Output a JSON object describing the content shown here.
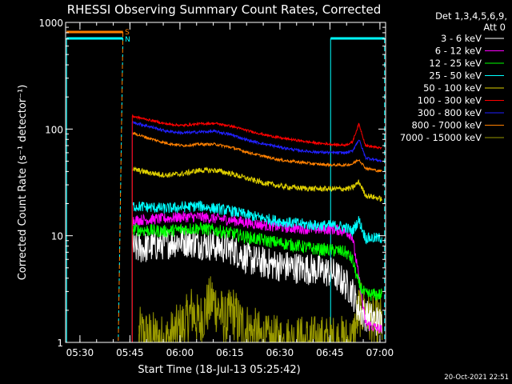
{
  "chart_data": {
    "type": "line",
    "title": "RHESSI Observing Summary Count Rates, Corrected",
    "xlabel": "Start Time (18-Jul-13 05:25:42)",
    "ylabel": "Corrected Count Rate (s⁻¹ detector⁻¹)",
    "yscale": "log",
    "ylim": [
      1,
      1000
    ],
    "xlim_minutes": [
      0,
      96
    ],
    "x_ticks": [
      "05:30",
      "05:45",
      "06:00",
      "06:15",
      "06:30",
      "06:45",
      "07:00"
    ],
    "y_ticks": [
      "1",
      "10",
      "100",
      "1000"
    ],
    "legend_header": [
      "Det 1,3,4,5,6,9,",
      "Att 0"
    ],
    "legend_position": "right",
    "footer_date": "20-Oct-2021 22:51",
    "flags": [
      {
        "label": "S",
        "color": "#ff8000"
      },
      {
        "label": "N",
        "color": "#00ffff"
      }
    ],
    "series": [
      {
        "name": "3 - 6 keV",
        "color": "#ffffff",
        "x": [
          20,
          25,
          30,
          35,
          40,
          45,
          50,
          55,
          60,
          65,
          70,
          75,
          80,
          82,
          84,
          86,
          88,
          90,
          95
        ],
        "y": [
          7.5,
          7.8,
          8.5,
          9.0,
          8.5,
          8.0,
          7.5,
          6.0,
          5.5,
          5.2,
          5.0,
          4.8,
          4.5,
          4.0,
          3.5,
          3.0,
          2.0,
          1.8,
          1.5
        ]
      },
      {
        "name": "6 - 12 keV",
        "color": "#ff00ff",
        "x": [
          20,
          25,
          30,
          35,
          40,
          45,
          50,
          55,
          60,
          65,
          70,
          75,
          80,
          82,
          84,
          86,
          88,
          90,
          95
        ],
        "y": [
          14,
          14.2,
          14.5,
          15,
          15,
          14.5,
          14,
          13.2,
          12.5,
          12,
          11.7,
          11.5,
          11.5,
          11.3,
          11,
          10,
          4,
          1.5,
          1.3
        ]
      },
      {
        "name": "12 - 25 keV",
        "color": "#00ff00",
        "x": [
          20,
          25,
          30,
          35,
          40,
          45,
          50,
          55,
          60,
          65,
          70,
          75,
          80,
          82,
          84,
          86,
          88,
          90,
          95
        ],
        "y": [
          11.5,
          11.2,
          11,
          11.5,
          11.8,
          11.2,
          10.5,
          9.6,
          9,
          8.5,
          8,
          7.5,
          7.3,
          7.2,
          7,
          6,
          3.5,
          2.8,
          2.8
        ]
      },
      {
        "name": "25 - 50 keV",
        "color": "#00ffff",
        "x": [
          20,
          25,
          30,
          35,
          40,
          45,
          50,
          55,
          60,
          65,
          70,
          75,
          80,
          82,
          84,
          86,
          88,
          90,
          95
        ],
        "y": [
          19,
          18.5,
          18,
          18.5,
          19,
          18,
          17,
          15.5,
          14.5,
          13.5,
          13,
          12.5,
          12.5,
          12.3,
          12,
          11,
          14,
          9.5,
          9.5
        ]
      },
      {
        "name": "50 - 100 keV",
        "color": "#e0d000",
        "x": [
          20,
          25,
          30,
          35,
          40,
          45,
          50,
          55,
          60,
          65,
          70,
          75,
          80,
          82,
          84,
          86,
          88,
          90,
          95
        ],
        "y": [
          42,
          39,
          37,
          38,
          41,
          41,
          38,
          34,
          31,
          29,
          28,
          27.5,
          27.5,
          27.5,
          27.5,
          28,
          32,
          24,
          22
        ]
      },
      {
        "name": "100 - 300 keV",
        "color": "#ff0000",
        "x": [
          20,
          25,
          30,
          35,
          40,
          45,
          50,
          55,
          60,
          65,
          70,
          75,
          80,
          82,
          84,
          86,
          88,
          90,
          95
        ],
        "y": [
          132,
          122,
          112,
          108,
          112,
          113,
          106,
          96,
          88,
          82,
          78,
          74,
          72,
          71,
          71,
          75,
          112,
          70,
          66
        ]
      },
      {
        "name": "300 - 800 keV",
        "color": "#2020ff",
        "x": [
          20,
          25,
          30,
          35,
          40,
          45,
          50,
          55,
          60,
          65,
          70,
          75,
          80,
          82,
          84,
          86,
          88,
          90,
          95
        ],
        "y": [
          116,
          106,
          96,
          92,
          94,
          95,
          88,
          78,
          72,
          67,
          63,
          61,
          60,
          60,
          60,
          62,
          80,
          54,
          50
        ]
      },
      {
        "name": "800 - 7000 keV",
        "color": "#ff8000",
        "x": [
          20,
          25,
          30,
          35,
          40,
          45,
          50,
          55,
          60,
          65,
          70,
          75,
          80,
          82,
          84,
          86,
          88,
          90,
          95
        ],
        "y": [
          92,
          82,
          74,
          70,
          72,
          72,
          67,
          60,
          55,
          51,
          49,
          47,
          46,
          46,
          46,
          47,
          52,
          43,
          40
        ]
      },
      {
        "name": "7000 - 15000 keV",
        "color": "#989800",
        "x": [
          22,
          30,
          36,
          38,
          40,
          42,
          44,
          46,
          48,
          50,
          52,
          60,
          70,
          80,
          86,
          88,
          90,
          92,
          95
        ],
        "y": [
          1.2,
          1.0,
          1.5,
          2.0,
          1.5,
          2.0,
          2.5,
          2.0,
          1.5,
          2.0,
          1.5,
          1.0,
          1.0,
          1.0,
          1.0,
          2.0,
          2.0,
          1.5,
          1.5
        ]
      }
    ]
  }
}
